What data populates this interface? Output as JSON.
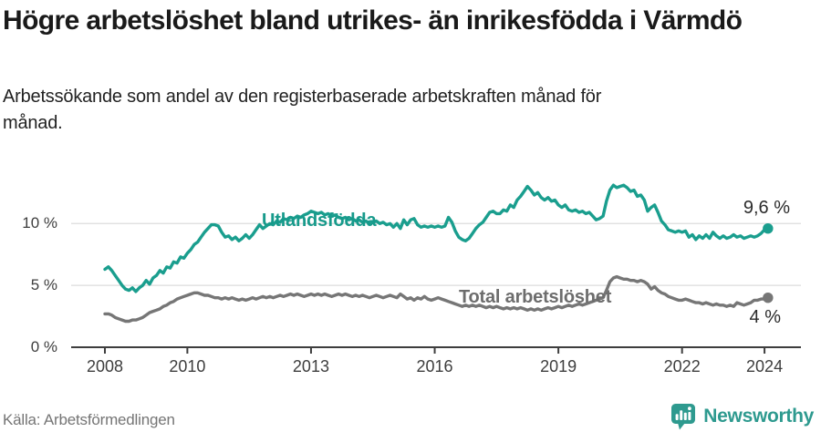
{
  "header": {
    "title": "Högre arbetslöshet bland utrikes- än inrikesfödda i Värmdö",
    "subtitle": "Arbetssökande som andel av den registerbaserade arbetskraften månad för månad."
  },
  "chart_data": {
    "type": "line",
    "title": "Högre arbetslöshet bland utrikes- än inrikesfödda i Värmdö",
    "unit": "%",
    "x_start": "2008-01",
    "x_end": "2024-02",
    "frequency": "monthly",
    "x_ticks": [
      2008,
      2010,
      2013,
      2016,
      2019,
      2022,
      2024
    ],
    "y_ticks": [
      {
        "value": 0,
        "label": "0 %"
      },
      {
        "value": 5,
        "label": "5 %"
      },
      {
        "value": 10,
        "label": "10 %"
      }
    ],
    "ylim": [
      0,
      14
    ],
    "grid": true,
    "legend_position": "inline-labels",
    "series": [
      {
        "name": "Utlandsfödda",
        "color": "#1a9e8e",
        "end_label": "9,6 %",
        "end_value": 9.6,
        "values": [
          6.3,
          6.5,
          6.2,
          5.8,
          5.4,
          5.0,
          4.7,
          4.6,
          4.8,
          4.5,
          4.8,
          5.0,
          5.4,
          5.1,
          5.6,
          5.8,
          6.2,
          6.0,
          6.5,
          6.4,
          6.9,
          6.8,
          7.3,
          7.2,
          7.6,
          7.9,
          8.3,
          8.5,
          8.9,
          9.3,
          9.6,
          9.9,
          9.9,
          9.8,
          9.3,
          8.9,
          9.0,
          8.7,
          8.9,
          8.6,
          8.8,
          9.1,
          8.8,
          9.1,
          9.5,
          9.9,
          9.6,
          9.8,
          10.0,
          9.9,
          10.2,
          10.1,
          10.4,
          10.3,
          10.5,
          10.4,
          10.6,
          10.5,
          10.7,
          10.8,
          11.0,
          10.9,
          10.8,
          10.9,
          10.7,
          10.8,
          10.6,
          10.7,
          10.5,
          10.4,
          10.5,
          10.3,
          10.4,
          10.2,
          10.3,
          10.1,
          10.2,
          10.0,
          10.1,
          10.2,
          10.0,
          10.1,
          9.9,
          10.0,
          9.7,
          10.0,
          9.6,
          10.3,
          9.9,
          10.3,
          10.4,
          9.9,
          9.7,
          9.8,
          9.7,
          9.8,
          9.7,
          9.8,
          9.7,
          9.8,
          10.5,
          10.1,
          9.4,
          8.9,
          8.7,
          8.6,
          8.8,
          9.2,
          9.6,
          9.9,
          10.1,
          10.5,
          10.9,
          11.0,
          10.8,
          10.8,
          11.1,
          11.0,
          11.5,
          11.3,
          11.9,
          12.2,
          12.6,
          13.0,
          12.7,
          12.3,
          12.5,
          12.1,
          11.9,
          12.1,
          11.8,
          11.9,
          11.5,
          11.3,
          11.5,
          11.1,
          11.0,
          11.1,
          10.9,
          11.0,
          10.8,
          10.9,
          10.6,
          10.3,
          10.4,
          10.6,
          11.8,
          12.7,
          13.1,
          12.9,
          13.0,
          13.1,
          12.9,
          12.6,
          12.7,
          12.2,
          12.3,
          11.9,
          11.0,
          11.3,
          11.5,
          10.9,
          10.2,
          9.9,
          9.5,
          9.4,
          9.3,
          9.4,
          9.3,
          9.4,
          8.9,
          9.1,
          8.7,
          9.0,
          8.8,
          9.1,
          8.8,
          9.3,
          9.0,
          8.8,
          9.0,
          8.8,
          8.9,
          9.1,
          8.9,
          9.0,
          8.8,
          8.9,
          9.0,
          8.9,
          9.0,
          9.2,
          9.5,
          9.6
        ]
      },
      {
        "name": "Total arbetslöshet",
        "color": "#767676",
        "end_label": "4 %",
        "end_value": 4.0,
        "values": [
          2.7,
          2.7,
          2.6,
          2.4,
          2.3,
          2.2,
          2.1,
          2.1,
          2.2,
          2.2,
          2.3,
          2.4,
          2.6,
          2.8,
          2.9,
          3.0,
          3.1,
          3.3,
          3.4,
          3.6,
          3.7,
          3.9,
          4.0,
          4.1,
          4.2,
          4.3,
          4.4,
          4.4,
          4.3,
          4.2,
          4.2,
          4.1,
          4.0,
          4.0,
          3.9,
          4.0,
          3.9,
          4.0,
          3.9,
          3.8,
          3.9,
          3.8,
          3.9,
          4.0,
          3.9,
          4.0,
          4.1,
          4.0,
          4.1,
          4.0,
          4.1,
          4.2,
          4.1,
          4.2,
          4.3,
          4.2,
          4.3,
          4.2,
          4.1,
          4.2,
          4.3,
          4.2,
          4.3,
          4.2,
          4.3,
          4.2,
          4.1,
          4.2,
          4.3,
          4.2,
          4.3,
          4.2,
          4.1,
          4.2,
          4.1,
          4.2,
          4.1,
          4.0,
          4.1,
          4.2,
          4.1,
          4.0,
          4.1,
          4.2,
          4.1,
          4.0,
          4.3,
          4.1,
          3.9,
          4.0,
          3.8,
          4.0,
          3.9,
          4.1,
          3.9,
          3.8,
          3.9,
          4.0,
          3.9,
          3.8,
          3.7,
          3.6,
          3.5,
          3.4,
          3.3,
          3.4,
          3.3,
          3.4,
          3.3,
          3.4,
          3.3,
          3.2,
          3.3,
          3.2,
          3.3,
          3.2,
          3.1,
          3.2,
          3.1,
          3.2,
          3.1,
          3.2,
          3.1,
          3.0,
          3.1,
          3.0,
          3.1,
          3.0,
          3.1,
          3.2,
          3.1,
          3.2,
          3.3,
          3.2,
          3.3,
          3.4,
          3.3,
          3.4,
          3.5,
          3.4,
          3.5,
          3.6,
          3.7,
          3.8,
          3.9,
          4.0,
          4.6,
          5.3,
          5.6,
          5.7,
          5.6,
          5.5,
          5.5,
          5.4,
          5.4,
          5.3,
          5.4,
          5.3,
          5.1,
          4.7,
          4.9,
          4.6,
          4.4,
          4.3,
          4.1,
          4.0,
          3.9,
          3.8,
          3.8,
          3.9,
          3.8,
          3.7,
          3.6,
          3.6,
          3.5,
          3.6,
          3.5,
          3.4,
          3.5,
          3.4,
          3.4,
          3.3,
          3.4,
          3.3,
          3.6,
          3.5,
          3.4,
          3.5,
          3.6,
          3.8,
          3.8,
          3.9,
          3.9,
          4.0
        ]
      }
    ],
    "colors": {
      "grid": "#dcdcdc",
      "axis": "#3e3e3e",
      "accent_teal": "#1a9e8e",
      "neutral_gray": "#767676"
    }
  },
  "footer": {
    "source": "Källa: Arbetsförmedlingen",
    "brand": "Newsworthy",
    "brand_color": "#2e9a8f"
  }
}
